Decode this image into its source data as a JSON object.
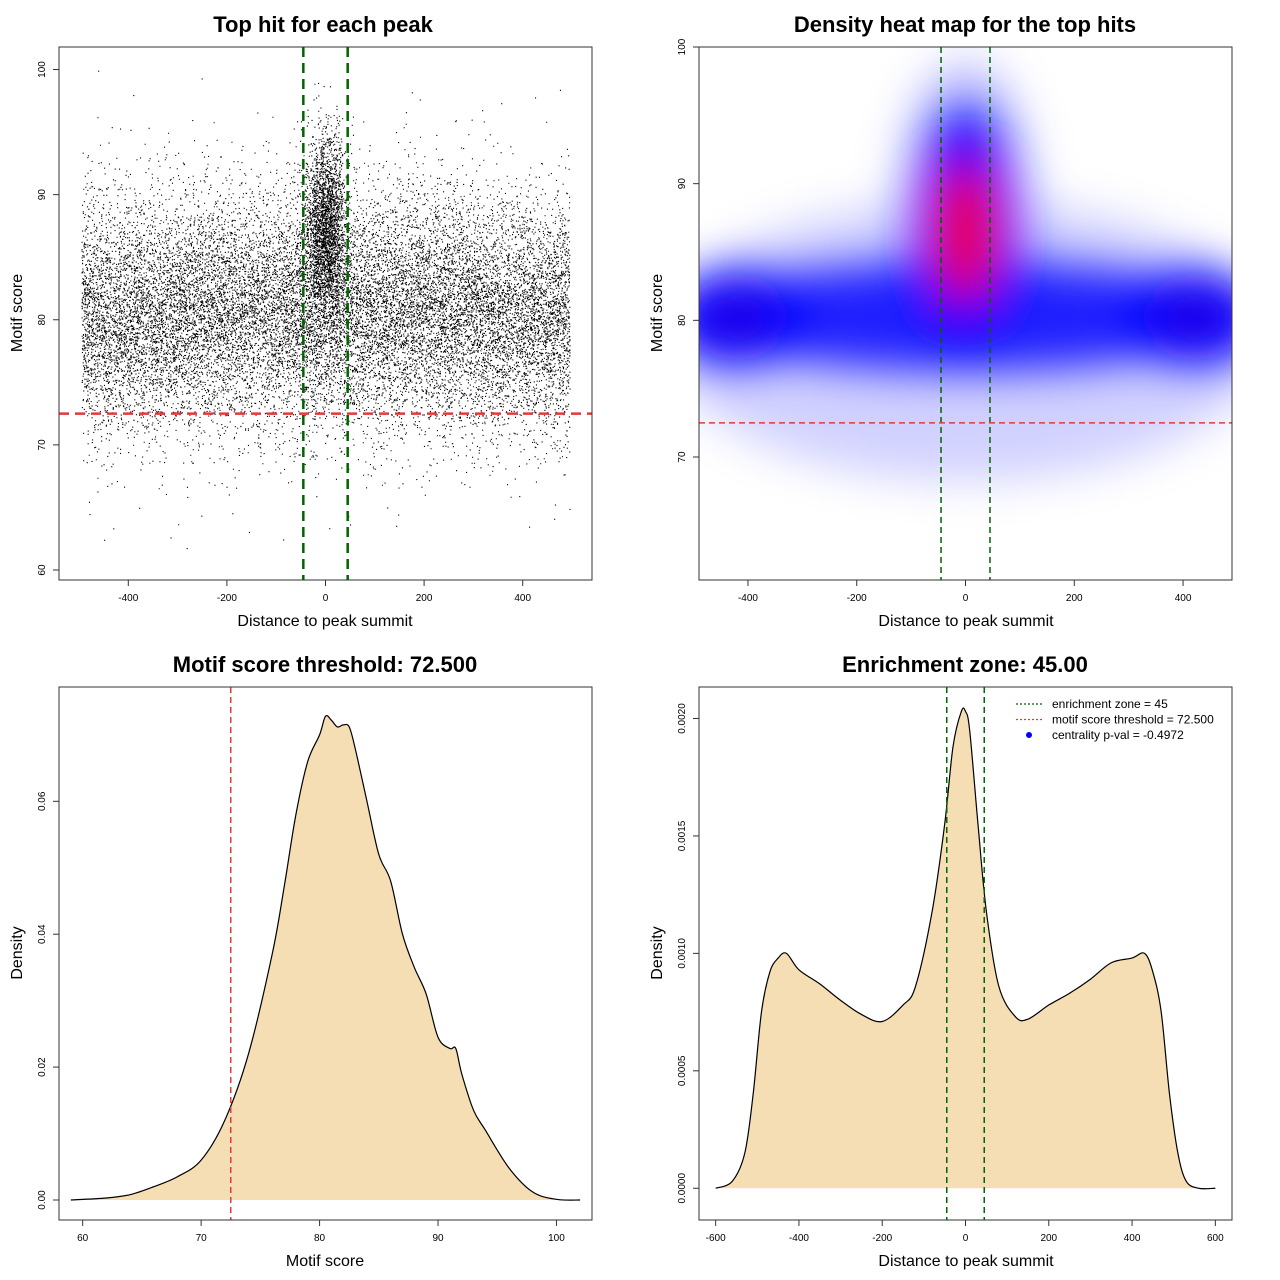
{
  "chart_data": [
    {
      "id": "scatter",
      "type": "scatter",
      "title": "Top hit for each peak",
      "xlabel": "Distance to peak summit",
      "ylabel": "Motif score",
      "xlim": [
        -500,
        500
      ],
      "ylim": [
        60,
        101
      ],
      "xticks": [
        -400,
        -200,
        0,
        200,
        400
      ],
      "yticks": [
        60,
        70,
        80,
        90,
        100
      ],
      "point_color": "#000000",
      "point_count_approx": 22000,
      "enrichment_zone": [
        -45,
        45
      ],
      "threshold": 72.5,
      "threshold_color": "#e53935",
      "zone_color": "#006400"
    },
    {
      "id": "heatmap",
      "type": "heatmap",
      "title": "Density heat map for the top hits",
      "xlabel": "Distance to peak summit",
      "ylabel": "Motif score",
      "xlim": [
        -490,
        490
      ],
      "ylim": [
        61,
        100
      ],
      "xticks": [
        -400,
        -200,
        0,
        200,
        400
      ],
      "yticks": [
        70,
        80,
        90,
        100
      ],
      "hotspots": [
        {
          "x": 0,
          "y": 86.8,
          "level": "high"
        },
        {
          "x": -420,
          "y": 80.2,
          "level": "medium"
        },
        {
          "x": 420,
          "y": 80.2,
          "level": "medium"
        }
      ],
      "colors": [
        "#ffffff",
        "#0000ff",
        "#ff0000"
      ],
      "enrichment_zone": [
        -45,
        45
      ],
      "threshold": 72.5
    },
    {
      "id": "score_density",
      "type": "area",
      "title": "Motif score threshold: 72.500",
      "xlabel": "Motif score",
      "ylabel": "Density",
      "xlim": [
        58,
        103
      ],
      "ylim": [
        0,
        0.076
      ],
      "xticks": [
        60,
        70,
        80,
        90,
        100
      ],
      "yticks": [
        0.0,
        0.02,
        0.04,
        0.06
      ],
      "ytick_labels": [
        "0.00",
        "0.02",
        "0.04",
        "0.06"
      ],
      "fill": "#f5deb3",
      "x": [
        59,
        62,
        64,
        66,
        68,
        70,
        72,
        74,
        76,
        77,
        78,
        79,
        80,
        80.5,
        81,
        81.5,
        82,
        82.5,
        83,
        84,
        85,
        86,
        87,
        88,
        89,
        90,
        91,
        91.5,
        92,
        93,
        94,
        96,
        98,
        100,
        102
      ],
      "y": [
        0.0,
        0.0003,
        0.0008,
        0.002,
        0.0035,
        0.006,
        0.012,
        0.022,
        0.037,
        0.047,
        0.058,
        0.066,
        0.07,
        0.0728,
        0.0722,
        0.0712,
        0.0715,
        0.0712,
        0.068,
        0.06,
        0.052,
        0.048,
        0.04,
        0.035,
        0.031,
        0.0245,
        0.0228,
        0.0228,
        0.019,
        0.0135,
        0.0105,
        0.0048,
        0.0012,
        0.0001,
        0.0
      ],
      "threshold": 72.5,
      "threshold_color": "#e53935"
    },
    {
      "id": "distance_density",
      "type": "area",
      "title": "Enrichment zone: 45.00",
      "xlabel": "Distance to peak summit",
      "ylabel": "Density",
      "xlim": [
        -640,
        640
      ],
      "ylim": [
        -5e-05,
        0.0021
      ],
      "xticks": [
        -600,
        -400,
        -200,
        0,
        200,
        400,
        600
      ],
      "yticks": [
        0.0,
        0.0005,
        0.001,
        0.0015,
        0.002
      ],
      "ytick_labels": [
        "0.0000",
        "0.0005",
        "0.0010",
        "0.0015",
        "0.0020"
      ],
      "fill": "#f5deb3",
      "x": [
        -600,
        -560,
        -530,
        -510,
        -490,
        -470,
        -450,
        -430,
        -400,
        -350,
        -300,
        -250,
        -200,
        -150,
        -120,
        -80,
        -50,
        -30,
        -10,
        0,
        10,
        30,
        50,
        80,
        120,
        150,
        200,
        250,
        300,
        350,
        400,
        430,
        450,
        470,
        490,
        510,
        530,
        560,
        600
      ],
      "y": [
        0.0,
        3e-05,
        0.00015,
        0.0004,
        0.00075,
        0.00092,
        0.00098,
        0.001,
        0.00093,
        0.00087,
        0.0008,
        0.00074,
        0.00071,
        0.00078,
        0.00086,
        0.00118,
        0.00155,
        0.00188,
        0.00203,
        0.00203,
        0.00195,
        0.00155,
        0.00118,
        0.00086,
        0.00073,
        0.00072,
        0.00078,
        0.00083,
        0.00089,
        0.00096,
        0.00098,
        0.001,
        0.00092,
        0.00075,
        0.0004,
        0.00015,
        3e-05,
        0.0,
        0.0
      ],
      "enrichment_zone": [
        -45,
        45
      ],
      "legend": {
        "placement": "top-right",
        "entries": [
          {
            "label": "enrichment zone = 45",
            "color": "#006400",
            "style": "dotted"
          },
          {
            "label": "motif score threshold = 72.500",
            "color": "#e53935",
            "style": "dotted"
          },
          {
            "label": "centrality p-val = -0.4972",
            "color": "#0000ff",
            "style": "point"
          }
        ]
      }
    }
  ]
}
